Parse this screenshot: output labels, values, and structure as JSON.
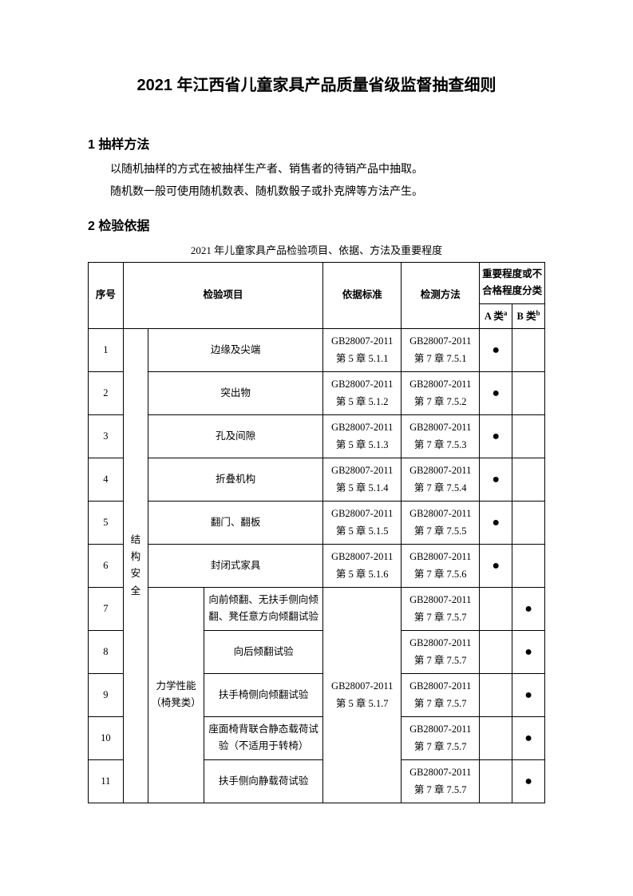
{
  "title": "2021 年江西省儿童家具产品质量省级监督抽查细则",
  "section1": {
    "heading": "1 抽样方法",
    "p1": "以随机抽样的方式在被抽样生产者、销售者的待销产品中抽取。",
    "p2": "随机数一般可使用随机数表、随机数骰子或扑克牌等方法产生。"
  },
  "section2": {
    "heading": "2 检验依据",
    "caption": "2021 年儿童家具产品检验项目、依据、方法及重要程度"
  },
  "headers": {
    "seq": "序号",
    "item": "检验项目",
    "standard": "依据标准",
    "method": "检测方法",
    "grade": "重要程度或不合格程度分类",
    "a": "A 类",
    "a_sup": "a",
    "b": "B 类",
    "b_sup": "b"
  },
  "cat_label": "结构安全",
  "sub_label": "力学性能（椅凳类）",
  "std_shared": "GB28007-2011\n第 5 章 5.1.7",
  "rows": [
    {
      "seq": "1",
      "item": "边缘及尖端",
      "std": "GB28007-2011\n第 5 章 5.1.1",
      "method": "GB28007-2011\n第 7 章 7.5.1",
      "a": "●",
      "b": ""
    },
    {
      "seq": "2",
      "item": "突出物",
      "std": "GB28007-2011\n第 5 章 5.1.2",
      "method": "GB28007-2011\n第 7 章 7.5.2",
      "a": "●",
      "b": ""
    },
    {
      "seq": "3",
      "item": "孔及间隙",
      "std": "GB28007-2011\n第 5 章 5.1.3",
      "method": "GB28007-2011\n第 7 章 7.5.3",
      "a": "●",
      "b": ""
    },
    {
      "seq": "4",
      "item": "折叠机构",
      "std": "GB28007-2011\n第 5 章 5.1.4",
      "method": "GB28007-2011\n第 7 章 7.5.4",
      "a": "●",
      "b": ""
    },
    {
      "seq": "5",
      "item": "翻门、翻板",
      "std": "GB28007-2011\n第 5 章 5.1.5",
      "method": "GB28007-2011\n第 7 章 7.5.5",
      "a": "●",
      "b": ""
    },
    {
      "seq": "6",
      "item": "封闭式家具",
      "std": "GB28007-2011\n第 5 章 5.1.6",
      "method": "GB28007-2011\n第 7 章 7.5.6",
      "a": "●",
      "b": ""
    },
    {
      "seq": "7",
      "item": "向前倾翻、无扶手侧向倾翻、凳任意方向倾翻试验",
      "method": "GB28007-2011\n第 7 章 7.5.7",
      "a": "",
      "b": "●"
    },
    {
      "seq": "8",
      "item": "向后倾翻试验",
      "method": "GB28007-2011\n第 7 章 7.5.7",
      "a": "",
      "b": "●"
    },
    {
      "seq": "9",
      "item": "扶手椅侧向倾翻试验",
      "method": "GB28007-2011\n第 7 章 7.5.7",
      "a": "",
      "b": "●"
    },
    {
      "seq": "10",
      "item": "座面椅背联合静态载荷试验（不适用于转椅）",
      "method": "GB28007-2011\n第 7 章 7.5.7",
      "a": "",
      "b": "●"
    },
    {
      "seq": "11",
      "item": "扶手侧向静载荷试验",
      "method": "GB28007-2011\n第 7 章 7.5.7",
      "a": "",
      "b": "●"
    }
  ]
}
